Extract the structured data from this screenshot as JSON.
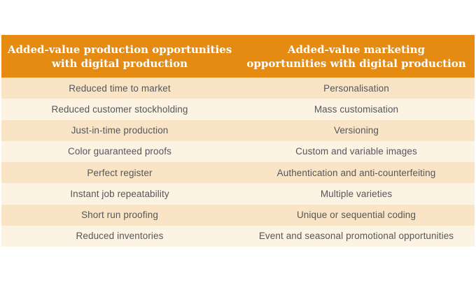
{
  "table": {
    "colors": {
      "header_bg": "#e68b12",
      "header_text": "#ffffff",
      "row_odd_bg": "#fae4c6",
      "row_even_bg": "#fdf3e3",
      "row_text": "#55565a"
    },
    "headers": [
      {
        "lines": [
          "Added-value production opportunities",
          "with digital production"
        ]
      },
      {
        "lines": [
          "Added-value marketing",
          "opportunities with digital production"
        ]
      }
    ],
    "rows": [
      {
        "left": "Reduced time to market",
        "right": "Personalisation"
      },
      {
        "left": "Reduced customer stockholding",
        "right": "Mass customisation"
      },
      {
        "left": "Just-in-time production",
        "right": "Versioning"
      },
      {
        "left": "Color guaranteed proofs",
        "right": "Custom and variable images"
      },
      {
        "left": "Perfect register",
        "right": "Authentication and anti-counterfeiting"
      },
      {
        "left": "Instant job repeatability",
        "right": "Multiple varieties"
      },
      {
        "left": "Short run proofing",
        "right": "Unique or sequential coding"
      },
      {
        "left": "Reduced inventories",
        "right": "Event and seasonal promotional opportunities"
      }
    ]
  }
}
